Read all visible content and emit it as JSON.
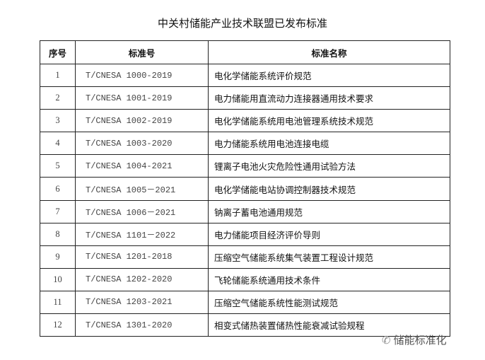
{
  "title": "中关村储能产业技术联盟已发布标准",
  "headers": {
    "no": "序号",
    "code": "标准号",
    "name": "标准名称"
  },
  "rows": [
    {
      "no": "1",
      "code": "T/CNESA 1000-2019",
      "name": "电化学储能系统评价规范"
    },
    {
      "no": "2",
      "code": "T/CNESA 1001-2019",
      "name": "电力储能用直流动力连接器通用技术要求"
    },
    {
      "no": "3",
      "code": "T/CNESA 1002-2019",
      "name": "电化学储能系统用电池管理系统技术规范"
    },
    {
      "no": "4",
      "code": "T/CNESA 1003-2020",
      "name": "电力储能系统用电池连接电缆"
    },
    {
      "no": "5",
      "code": "T/CNESA 1004-2021",
      "name": "锂离子电池火灾危险性通用试验方法"
    },
    {
      "no": "6",
      "code": "T/CNESA 1005－2021",
      "name": "电化学储能电站协调控制器技术规范"
    },
    {
      "no": "7",
      "code": "T/CNESA 1006－2021",
      "name": "钠离子蓄电池通用规范"
    },
    {
      "no": "8",
      "code": "T/CNESA 1101－2022",
      "name": "电力储能项目经济评价导则"
    },
    {
      "no": "9",
      "code": "T/CNESA 1201-2018",
      "name": "压缩空气储能系统集气装置工程设计规范"
    },
    {
      "no": "10",
      "code": "T/CNESA 1202-2020",
      "name": "飞轮储能系统通用技术条件"
    },
    {
      "no": "11",
      "code": "T/CNESA 1203-2021",
      "name": "压缩空气储能系统性能测试规范"
    },
    {
      "no": "12",
      "code": "T/CNESA 1301-2020",
      "name": "相变式储热装置储热性能衰减试验规程"
    }
  ],
  "watermark": {
    "icon": "wechat-icon",
    "text": "储能标准化"
  }
}
